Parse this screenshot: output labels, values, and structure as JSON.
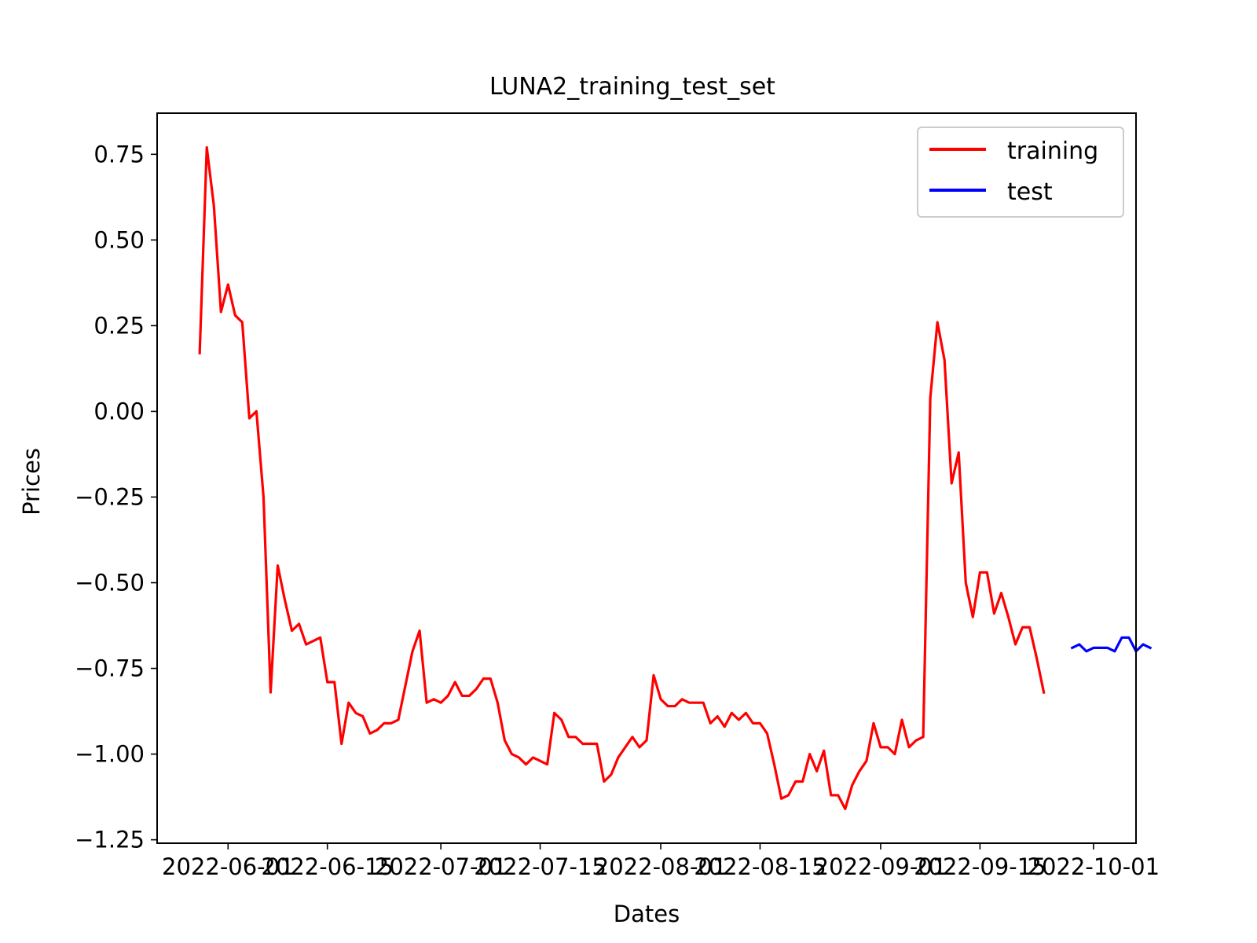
{
  "chart_data": {
    "type": "line",
    "title": "LUNA2_training_test_set",
    "xlabel": "Dates",
    "ylabel": "Prices",
    "xlim": [
      "2022-05-22",
      "2022-10-07"
    ],
    "ylim": [
      -1.26,
      0.87
    ],
    "grid": false,
    "legend": "top-right",
    "x_ticks": [
      "2022-06-01",
      "2022-06-15",
      "2022-07-01",
      "2022-07-15",
      "2022-08-01",
      "2022-08-15",
      "2022-09-01",
      "2022-09-15",
      "2022-10-01"
    ],
    "y_ticks": [
      0.75,
      0.5,
      0.25,
      0.0,
      -0.25,
      -0.5,
      -0.75,
      -1.0,
      -1.25
    ],
    "y_tick_labels": [
      "0.75",
      "0.50",
      "0.25",
      "0.00",
      "−0.25",
      "−0.50",
      "−0.75",
      "−1.00",
      "−1.25"
    ],
    "series": [
      {
        "name": "training",
        "color": "#ff0000",
        "start_date": "2022-05-28",
        "values": [
          0.17,
          0.77,
          0.6,
          0.29,
          0.37,
          0.28,
          0.26,
          -0.02,
          0.0,
          -0.25,
          -0.82,
          -0.45,
          -0.55,
          -0.64,
          -0.62,
          -0.68,
          -0.67,
          -0.66,
          -0.79,
          -0.79,
          -0.97,
          -0.85,
          -0.88,
          -0.89,
          -0.94,
          -0.93,
          -0.91,
          -0.91,
          -0.9,
          -0.8,
          -0.7,
          -0.64,
          -0.85,
          -0.84,
          -0.85,
          -0.83,
          -0.79,
          -0.83,
          -0.83,
          -0.81,
          -0.78,
          -0.78,
          -0.85,
          -0.96,
          -1.0,
          -1.01,
          -1.03,
          -1.01,
          -1.02,
          -1.03,
          -0.88,
          -0.9,
          -0.95,
          -0.95,
          -0.97,
          -0.97,
          -0.97,
          -1.08,
          -1.06,
          -1.01,
          -0.98,
          -0.95,
          -0.98,
          -0.96,
          -0.77,
          -0.84,
          -0.86,
          -0.86,
          -0.84,
          -0.85,
          -0.85,
          -0.85,
          -0.91,
          -0.89,
          -0.92,
          -0.88,
          -0.9,
          -0.88,
          -0.91,
          -0.91,
          -0.94,
          -1.03,
          -1.13,
          -1.12,
          -1.08,
          -1.08,
          -1.0,
          -1.05,
          -0.99,
          -1.12,
          -1.12,
          -1.16,
          -1.09,
          -1.05,
          -1.02,
          -0.91,
          -0.98,
          -0.98,
          -1.0,
          -0.9,
          -0.98,
          -0.96,
          -0.95,
          0.04,
          0.26,
          0.15,
          -0.21,
          -0.12,
          -0.5,
          -0.6,
          -0.47,
          -0.47,
          -0.59,
          -0.53,
          -0.6,
          -0.68,
          -0.63,
          -0.63,
          -0.72,
          -0.82
        ]
      },
      {
        "name": "test",
        "color": "#0000ff",
        "start_date": "2022-09-28",
        "values": [
          -0.69,
          -0.68,
          -0.7,
          -0.69,
          -0.69,
          -0.69,
          -0.7,
          -0.66,
          -0.66,
          -0.7,
          -0.68,
          -0.69
        ]
      }
    ]
  }
}
